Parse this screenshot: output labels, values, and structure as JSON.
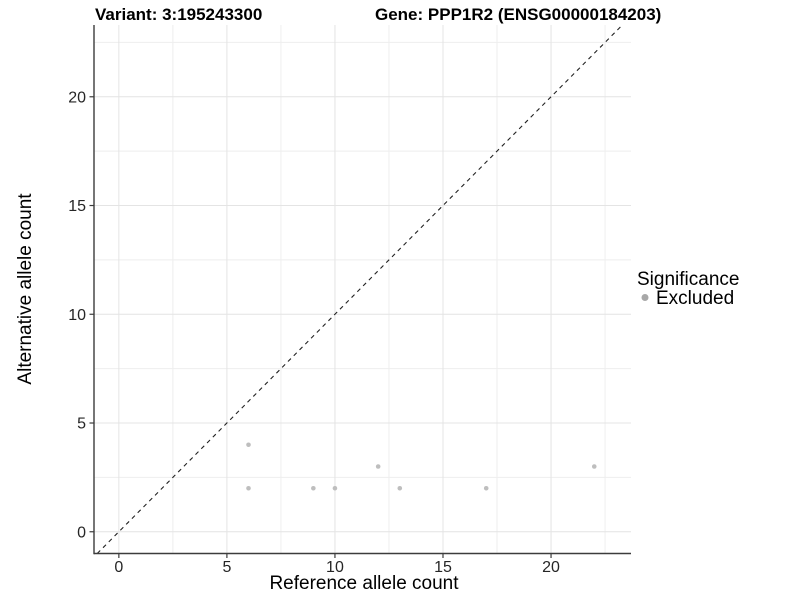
{
  "chart_data": {
    "type": "scatter",
    "title_left": "Variant: 3:195243300",
    "title_right": "Gene: PPP1R2 (ENSG00000184203)",
    "xlabel": "Reference allele count",
    "ylabel": "Alternative allele count",
    "xlim": [
      -1.15,
      23.7
    ],
    "ylim": [
      -1.0,
      23.3
    ],
    "x_ticks": [
      0,
      5,
      10,
      15,
      20
    ],
    "y_ticks": [
      0,
      5,
      10,
      15,
      20
    ],
    "minor_tick_interval": 2.5,
    "grid": true,
    "legend_position": "right",
    "identity_line": {
      "style": "dashed",
      "equation": "y = x"
    },
    "series": [
      {
        "name": "Excluded",
        "color": "#bebebe",
        "point_radius": 2.3,
        "points": [
          [
            6,
            4
          ],
          [
            6,
            2
          ],
          [
            9,
            2
          ],
          [
            10,
            2
          ],
          [
            12,
            3
          ],
          [
            13,
            2
          ],
          [
            17,
            2
          ],
          [
            22,
            3
          ]
        ]
      }
    ],
    "legend": {
      "title": "Significance",
      "items": [
        {
          "label": "Excluded",
          "color": "#a8a8a8"
        }
      ]
    }
  },
  "colors": {
    "background": "#ffffff",
    "grid_major": "#e4e4e4",
    "grid_minor": "#eeeeee",
    "axis_line": "#3c3c3c",
    "tick_mark": "#3c3c3c",
    "identity_line": "#222222"
  }
}
